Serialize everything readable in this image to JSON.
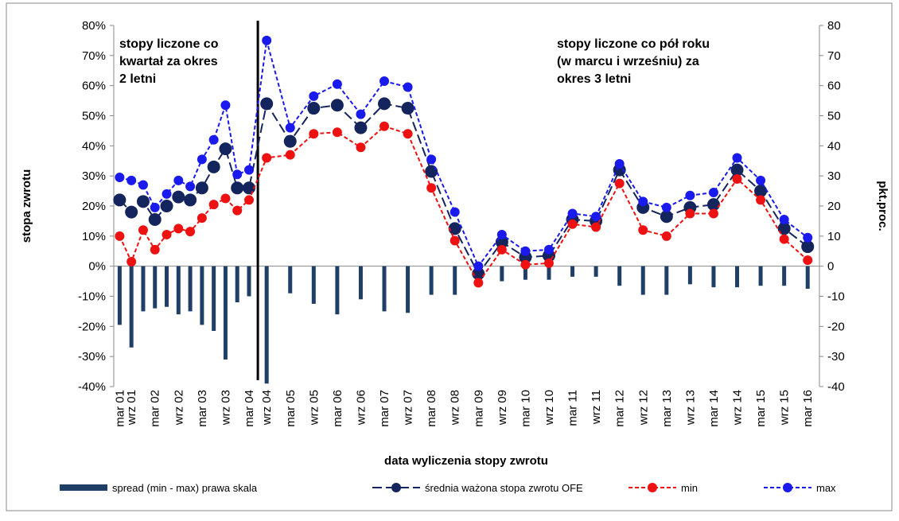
{
  "chart_data": {
    "type": "line",
    "ylabel": "stopa zwrotu",
    "y2label": "pkt.proc.",
    "xlabel": "data wyliczenia stopy zwrotu",
    "annotations": [
      {
        "lines": [
          "stopy liczone co",
          "kwartał za okres",
          "2 letni"
        ]
      },
      {
        "lines": [
          "stopy liczone co pół roku",
          "(w marcu i wrześniu) za",
          "okres 3 letni"
        ]
      }
    ],
    "categories": [
      "mar 01",
      "wrz 01",
      null,
      "mar 02",
      null,
      "wrz 02",
      null,
      "mar 03",
      null,
      "wrz 03",
      null,
      "mar 04",
      "wrz 04",
      "mar 05",
      "wrz 05",
      "mar 06",
      "wrz 06",
      "mar 07",
      "wrz 07",
      "mar 08",
      "wrz 08",
      "mar 09",
      "wrz 09",
      "mar 10",
      "wrz 10",
      "mar 11",
      "wrz 11",
      "mar 12",
      "wrz 12",
      "mar 13",
      "wrz 13",
      "mar 14",
      "wrz 14",
      "mar 15",
      "wrz 15",
      "mar 16"
    ],
    "ylim": [
      -40,
      80
    ],
    "yticks": [
      {
        "value": -40,
        "label": "-40%"
      },
      {
        "value": -30,
        "label": "-30%"
      },
      {
        "value": -20,
        "label": "-20%"
      },
      {
        "value": -10,
        "label": "-10%"
      },
      {
        "value": 0,
        "label": "0%"
      },
      {
        "value": 10,
        "label": "10%"
      },
      {
        "value": 20,
        "label": "20%"
      },
      {
        "value": 30,
        "label": "30%"
      },
      {
        "value": 40,
        "label": "40%"
      },
      {
        "value": 50,
        "label": "50%"
      },
      {
        "value": 60,
        "label": "60%"
      },
      {
        "value": 70,
        "label": "70%"
      },
      {
        "value": 80,
        "label": "80%"
      }
    ],
    "y2lim": [
      -40,
      80
    ],
    "y2ticks": [
      -40,
      -30,
      -20,
      -10,
      0,
      10,
      20,
      30,
      40,
      50,
      60,
      70,
      80
    ],
    "series": [
      {
        "name": "spread (min - max) prawa skala",
        "type": "bar",
        "axis": "y2",
        "color": "#1f3f66",
        "values": [
          -19.5,
          -27,
          -15,
          -14,
          -13.5,
          -16,
          -15,
          -19.5,
          -21.5,
          -31,
          -12,
          -10,
          -39,
          -9,
          -12.5,
          -16,
          -11,
          -15,
          -15.5,
          -9.5,
          -9.5,
          -5.5,
          -5,
          -4.5,
          -4.5,
          -3.5,
          -3.5,
          -6.5,
          -9.5,
          -9.5,
          -6,
          -7,
          -7,
          -6.5,
          -6.5,
          -7.5
        ]
      },
      {
        "name": "średnia ważona stopa zwrotu OFE",
        "type": "line",
        "color": "#14245c",
        "dash": "12,5",
        "marker": 8,
        "values": [
          22,
          18,
          21.5,
          15.5,
          20,
          23,
          22,
          26,
          33,
          39,
          26,
          26,
          54,
          41.5,
          52.5,
          53.5,
          46,
          54,
          52.5,
          31.5,
          12.5,
          -2.5,
          8,
          3,
          3.5,
          15.5,
          15,
          32,
          19.5,
          16.5,
          19.5,
          20.5,
          32,
          25,
          12.5,
          6.5
        ]
      },
      {
        "name": "min",
        "type": "line",
        "color": "#ee1111",
        "dash": "5,3",
        "marker": 6,
        "values": [
          10,
          1.5,
          12,
          5.5,
          10.5,
          12.5,
          11.5,
          16,
          20.5,
          22.5,
          18.5,
          22,
          36,
          37,
          44,
          44.5,
          39.5,
          46.5,
          44,
          26,
          8.5,
          -5.5,
          5.5,
          0.5,
          1,
          14,
          13,
          27.5,
          12,
          10,
          17.5,
          17.5,
          29,
          22,
          9,
          2
        ]
      },
      {
        "name": "max",
        "type": "line",
        "color": "#1a1aee",
        "dash": "5,3",
        "marker": 6,
        "values": [
          29.5,
          28.5,
          27,
          19.5,
          24,
          28.5,
          26.5,
          35.5,
          42,
          53.5,
          30.5,
          32,
          75,
          46,
          56.5,
          60.5,
          50.5,
          61.5,
          59.5,
          35.5,
          18,
          0,
          10.5,
          5,
          5.5,
          17.5,
          16.5,
          34,
          21.5,
          19.5,
          23.5,
          24.5,
          36,
          28.5,
          15.5,
          9.5
        ]
      }
    ]
  }
}
